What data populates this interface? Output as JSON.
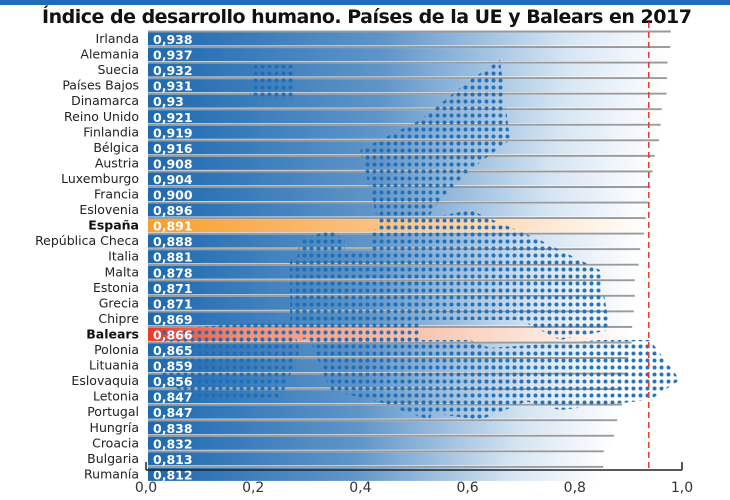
{
  "chart_data": {
    "type": "bar",
    "orientation": "horizontal",
    "title": "Índice de desarrollo humano. Países de la UE y Balears en 2017",
    "xlabel": "",
    "ylabel": "",
    "xlim": [
      0.0,
      1.0
    ],
    "xticks": [
      "0,0",
      "0,2",
      "0,4",
      "0,6",
      "0,8",
      "1,0"
    ],
    "xtick_values": [
      0.0,
      0.2,
      0.4,
      0.6,
      0.8,
      1.0
    ],
    "reference_line": {
      "value": 0.938,
      "style": "dashed",
      "color": "#e8392b"
    },
    "colors": {
      "default": "#1f6db5",
      "spain": "#f7a030",
      "balears": "#e8392b",
      "topbar": "#1f6db5"
    },
    "categories": [
      "Irlanda",
      "Alemania",
      "Suecia",
      "Países Bajos",
      "Dinamarca",
      "Reino Unido",
      "Finlandia",
      "Bélgica",
      "Austria",
      "Luxemburgo",
      "Francia",
      "Eslovenia",
      "España",
      "República Checa",
      "Italia",
      "Malta",
      "Estonia",
      "Grecia",
      "Chipre",
      "Balears",
      "Polonia",
      "Lituania",
      "Eslovaquia",
      "Letonia",
      "Portugal",
      "Hungría",
      "Croacia",
      "Bulgaria",
      "Rumanía"
    ],
    "values": [
      0.938,
      0.937,
      0.932,
      0.931,
      0.93,
      0.921,
      0.919,
      0.916,
      0.908,
      0.904,
      0.9,
      0.896,
      0.891,
      0.888,
      0.881,
      0.878,
      0.871,
      0.871,
      0.869,
      0.866,
      0.865,
      0.859,
      0.856,
      0.847,
      0.847,
      0.838,
      0.832,
      0.813,
      0.812
    ],
    "value_labels": [
      "0,938",
      "0,937",
      "0,932",
      "0,931",
      "0,93",
      "0,921",
      "0,919",
      "0,916",
      "0,908",
      "0,904",
      "0,900",
      "0,896",
      "0,891",
      "0,888",
      "0,881",
      "0,878",
      "0,871",
      "0,871",
      "0,869",
      "0,866",
      "0,865",
      "0,859",
      "0,856",
      "0,847",
      "0,847",
      "0,838",
      "0,832",
      "0,813",
      "0,812"
    ],
    "highlight": {
      "España": "spain",
      "Balears": "balears"
    },
    "background_image": "dotted map of Europe"
  }
}
